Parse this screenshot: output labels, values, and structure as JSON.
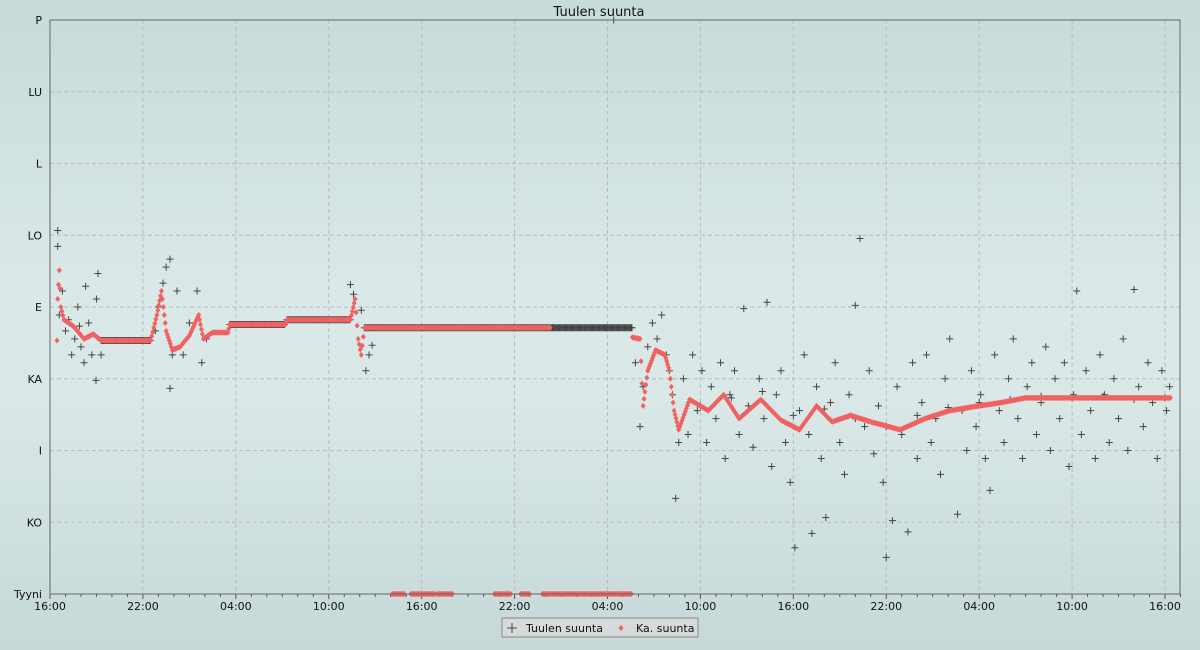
{
  "chart_data": {
    "type": "scatter",
    "title": "Tuulen suunta",
    "xlabel": "",
    "ylabel": "",
    "x_unit": "hours since first 16:00",
    "xlim": [
      0,
      73
    ],
    "ylim": [
      0,
      360
    ],
    "grid": true,
    "legend_placement": "bottom-center",
    "y_ticks": [
      {
        "value": 0,
        "label": "Tyyni"
      },
      {
        "value": 45,
        "label": "KO"
      },
      {
        "value": 90,
        "label": "I"
      },
      {
        "value": 135,
        "label": "KA"
      },
      {
        "value": 180,
        "label": "E"
      },
      {
        "value": 225,
        "label": "LO"
      },
      {
        "value": 270,
        "label": "L"
      },
      {
        "value": 315,
        "label": "LU"
      },
      {
        "value": 360,
        "label": "P"
      }
    ],
    "x_ticks": [
      {
        "value": 0,
        "label": "16:00"
      },
      {
        "value": 6,
        "label": "22:00"
      },
      {
        "value": 12,
        "label": "04:00"
      },
      {
        "value": 18,
        "label": "10:00"
      },
      {
        "value": 24,
        "label": "16:00"
      },
      {
        "value": 30,
        "label": "22:00"
      },
      {
        "value": 36,
        "label": "04:00"
      },
      {
        "value": 42,
        "label": "10:00"
      },
      {
        "value": 48,
        "label": "16:00"
      },
      {
        "value": 54,
        "label": "22:00"
      },
      {
        "value": 60,
        "label": "04:00"
      },
      {
        "value": 66,
        "label": "10:00"
      },
      {
        "value": 72,
        "label": "16:00"
      }
    ],
    "series": [
      {
        "name": "Tuulen suunta",
        "marker": "plus",
        "color": "#444444",
        "constant_segments": [
          {
            "from": 20.3,
            "to": 37.6,
            "value": 167
          },
          {
            "from": 3.3,
            "to": 6.5,
            "value": 159
          },
          {
            "from": 11.6,
            "to": 15.2,
            "value": 169
          },
          {
            "from": 15.3,
            "to": 19.4,
            "value": 172
          }
        ],
        "points": [
          [
            0.5,
            228
          ],
          [
            0.5,
            218
          ],
          [
            0.6,
            175
          ],
          [
            0.8,
            190
          ],
          [
            1.0,
            165
          ],
          [
            1.2,
            172
          ],
          [
            1.4,
            150
          ],
          [
            1.6,
            160
          ],
          [
            1.8,
            180
          ],
          [
            2.0,
            155
          ],
          [
            2.3,
            193
          ],
          [
            2.5,
            170
          ],
          [
            2.7,
            150
          ],
          [
            2.97,
            134
          ],
          [
            3.1,
            201
          ],
          [
            3.0,
            185
          ],
          [
            2.2,
            145
          ],
          [
            1.9,
            168
          ],
          [
            3.3,
            150
          ],
          [
            6.8,
            165
          ],
          [
            7.0,
            180
          ],
          [
            7.3,
            195
          ],
          [
            7.5,
            205
          ],
          [
            7.75,
            210
          ],
          [
            7.75,
            129
          ],
          [
            7.9,
            150
          ],
          [
            8.2,
            190
          ],
          [
            8.6,
            150
          ],
          [
            9.0,
            170
          ],
          [
            9.5,
            190
          ],
          [
            9.8,
            145
          ],
          [
            10.1,
            160
          ],
          [
            19.4,
            194
          ],
          [
            19.6,
            188
          ],
          [
            20.1,
            178
          ],
          [
            20.4,
            140
          ],
          [
            20.6,
            150
          ],
          [
            20.8,
            156
          ],
          [
            36.4,
            360
          ],
          [
            37.8,
            145
          ],
          [
            38.1,
            105
          ],
          [
            38.3,
            130
          ],
          [
            38.6,
            155
          ],
          [
            38.9,
            170
          ],
          [
            39.2,
            160
          ],
          [
            39.5,
            175
          ],
          [
            39.8,
            150
          ],
          [
            40.0,
            140
          ],
          [
            40.2,
            125
          ],
          [
            40.4,
            60
          ],
          [
            40.6,
            95
          ],
          [
            40.9,
            135
          ],
          [
            41.2,
            100
          ],
          [
            41.5,
            150
          ],
          [
            41.8,
            115
          ],
          [
            42.1,
            140
          ],
          [
            42.4,
            95
          ],
          [
            42.7,
            130
          ],
          [
            43.0,
            110
          ],
          [
            43.3,
            145
          ],
          [
            43.6,
            85
          ],
          [
            43.9,
            125
          ],
          [
            44.2,
            140
          ],
          [
            44.5,
            100
          ],
          [
            44.8,
            179
          ],
          [
            45.1,
            118
          ],
          [
            45.4,
            92
          ],
          [
            45.8,
            135
          ],
          [
            46.1,
            110
          ],
          [
            46.3,
            183
          ],
          [
            46.6,
            80
          ],
          [
            46.9,
            125
          ],
          [
            47.2,
            140
          ],
          [
            47.5,
            95
          ],
          [
            47.8,
            70
          ],
          [
            48.1,
            29
          ],
          [
            48.4,
            115
          ],
          [
            48.7,
            150
          ],
          [
            49.0,
            100
          ],
          [
            49.2,
            38
          ],
          [
            49.5,
            130
          ],
          [
            49.8,
            85
          ],
          [
            50.1,
            48
          ],
          [
            50.4,
            120
          ],
          [
            50.7,
            145
          ],
          [
            51.0,
            95
          ],
          [
            51.3,
            75
          ],
          [
            51.6,
            125
          ],
          [
            52.0,
            181
          ],
          [
            52.3,
            223
          ],
          [
            52.6,
            105
          ],
          [
            52.9,
            140
          ],
          [
            53.2,
            88
          ],
          [
            53.5,
            118
          ],
          [
            53.8,
            70
          ],
          [
            54.0,
            23
          ],
          [
            54.4,
            46
          ],
          [
            54.7,
            130
          ],
          [
            55.0,
            100
          ],
          [
            55.4,
            39
          ],
          [
            55.7,
            145
          ],
          [
            56.0,
            85
          ],
          [
            56.3,
            120
          ],
          [
            56.6,
            150
          ],
          [
            56.9,
            95
          ],
          [
            57.2,
            110
          ],
          [
            57.5,
            75
          ],
          [
            57.8,
            135
          ],
          [
            58.1,
            160
          ],
          [
            58.6,
            50
          ],
          [
            58.9,
            115
          ],
          [
            59.2,
            90
          ],
          [
            59.5,
            140
          ],
          [
            59.8,
            105
          ],
          [
            60.1,
            125
          ],
          [
            60.4,
            85
          ],
          [
            60.7,
            65
          ],
          [
            61.0,
            150
          ],
          [
            61.3,
            115
          ],
          [
            61.6,
            95
          ],
          [
            61.9,
            135
          ],
          [
            62.2,
            160
          ],
          [
            62.5,
            110
          ],
          [
            62.8,
            85
          ],
          [
            63.1,
            130
          ],
          [
            63.4,
            145
          ],
          [
            63.7,
            100
          ],
          [
            64.0,
            120
          ],
          [
            64.3,
            155
          ],
          [
            64.6,
            90
          ],
          [
            64.9,
            135
          ],
          [
            65.2,
            110
          ],
          [
            65.5,
            145
          ],
          [
            65.8,
            80
          ],
          [
            66.1,
            125
          ],
          [
            66.3,
            190
          ],
          [
            66.6,
            100
          ],
          [
            66.9,
            140
          ],
          [
            67.2,
            115
          ],
          [
            67.5,
            85
          ],
          [
            67.8,
            150
          ],
          [
            68.1,
            125
          ],
          [
            68.4,
            95
          ],
          [
            68.7,
            135
          ],
          [
            69.0,
            110
          ],
          [
            69.3,
            160
          ],
          [
            69.6,
            90
          ],
          [
            70.0,
            191
          ],
          [
            70.3,
            130
          ],
          [
            70.6,
            105
          ],
          [
            70.9,
            145
          ],
          [
            71.2,
            120
          ],
          [
            71.5,
            85
          ],
          [
            71.8,
            140
          ],
          [
            72.1,
            115
          ],
          [
            72.3,
            130
          ],
          [
            42.0,
            118
          ],
          [
            44.0,
            123
          ],
          [
            46.0,
            127
          ],
          [
            48.0,
            112
          ],
          [
            50.0,
            116
          ],
          [
            52.0,
            110
          ],
          [
            54.0,
            105
          ],
          [
            56.0,
            112
          ],
          [
            58.0,
            117
          ],
          [
            60.0,
            120
          ],
          [
            62.0,
            122
          ],
          [
            64.0,
            124
          ],
          [
            66.0,
            123
          ],
          [
            68.0,
            124
          ],
          [
            70.0,
            122
          ],
          [
            72.0,
            123
          ]
        ]
      },
      {
        "name": "Ka. suunta",
        "marker": "diamond",
        "color": "#f06262",
        "points": [
          [
            0.45,
            159
          ],
          [
            0.5,
            185
          ],
          [
            0.6,
            203
          ],
          [
            0.7,
            180
          ],
          [
            0.9,
            172
          ],
          [
            1.5,
            168
          ],
          [
            2.2,
            160
          ],
          [
            2.8,
            163
          ],
          [
            3.3,
            159
          ],
          [
            6.5,
            159
          ],
          [
            6.9,
            175
          ],
          [
            7.2,
            190
          ],
          [
            7.5,
            165
          ],
          [
            7.9,
            153
          ],
          [
            8.4,
            155
          ],
          [
            9.0,
            162
          ],
          [
            9.6,
            175
          ],
          [
            9.9,
            160
          ],
          [
            10.5,
            164
          ],
          [
            11.5,
            164
          ],
          [
            11.6,
            169
          ],
          [
            15.2,
            169
          ],
          [
            15.3,
            172
          ],
          [
            19.4,
            172
          ],
          [
            19.7,
            185
          ],
          [
            19.9,
            160
          ],
          [
            20.1,
            150
          ],
          [
            20.3,
            167
          ],
          [
            32.3,
            167
          ],
          null,
          [
            37.6,
            161
          ],
          [
            38.1,
            160
          ],
          [
            38.3,
            118
          ],
          [
            38.6,
            140
          ],
          [
            39.1,
            153
          ],
          [
            39.7,
            150
          ],
          [
            40.0,
            140
          ],
          [
            40.3,
            115
          ],
          [
            40.6,
            103
          ],
          [
            41.3,
            122
          ],
          [
            42.5,
            115
          ],
          [
            43.5,
            125
          ],
          [
            44.5,
            110
          ],
          [
            45.9,
            122
          ],
          [
            47.2,
            109
          ],
          [
            48.4,
            103
          ],
          [
            49.5,
            118
          ],
          [
            50.5,
            108
          ],
          [
            51.7,
            112
          ],
          [
            53.0,
            108
          ],
          [
            54.9,
            103
          ],
          [
            56.5,
            110
          ],
          [
            58.1,
            115
          ],
          [
            60.0,
            118
          ],
          [
            61.4,
            120
          ],
          [
            63.0,
            123
          ],
          [
            64.6,
            123
          ],
          [
            68.0,
            123
          ],
          [
            72.35,
            123
          ]
        ],
        "calm_segments": [
          {
            "from": 22.1,
            "to": 22.9,
            "value": 0
          },
          {
            "from": 23.3,
            "to": 24.9,
            "value": 0
          },
          {
            "from": 25.0,
            "to": 26.0,
            "value": 0
          },
          {
            "from": 28.7,
            "to": 29.8,
            "value": 0
          },
          {
            "from": 30.4,
            "to": 31.0,
            "value": 0
          },
          {
            "from": 31.8,
            "to": 37.6,
            "value": 0
          }
        ]
      }
    ]
  },
  "legend": {
    "items": [
      "Tuulen suunta",
      "Ka. suunta"
    ]
  }
}
